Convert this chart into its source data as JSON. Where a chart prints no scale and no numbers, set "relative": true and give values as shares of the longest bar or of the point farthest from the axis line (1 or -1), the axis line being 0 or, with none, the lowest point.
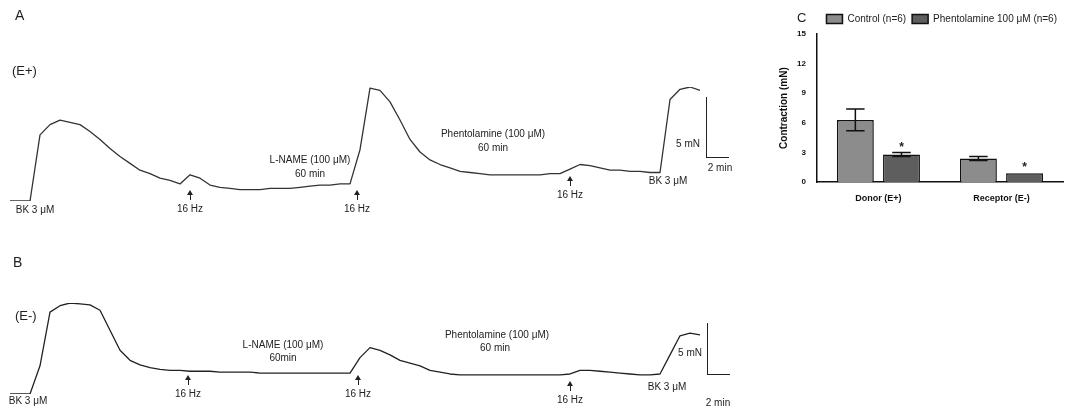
{
  "chart_data": [
    {
      "type": "line",
      "title": "A",
      "subtitle": "(E+)",
      "relative": true,
      "categories": [
        null,
        null,
        null,
        null,
        null,
        null,
        null,
        null,
        null,
        null,
        null,
        null,
        null,
        null,
        null,
        null,
        null,
        null,
        null,
        null,
        null,
        null,
        null,
        null,
        null,
        null,
        null,
        null,
        null,
        null,
        null,
        null,
        null,
        null,
        null,
        null,
        null,
        null,
        null,
        null,
        null,
        null,
        null,
        null,
        null,
        null,
        null,
        null,
        null,
        null,
        null,
        null,
        null,
        null,
        null,
        null,
        null,
        null,
        null,
        null,
        null,
        null,
        null,
        null,
        null,
        null,
        null,
        null,
        null,
        null
      ],
      "series": [
        {
          "color": "#333333",
          "values": [
            0,
            0,
            0,
            0.58,
            0.67,
            0.71,
            0.69,
            0.67,
            0.61,
            0.54,
            0.46,
            0.39,
            0.33,
            0.27,
            0.24,
            0.2,
            0.18,
            0.15,
            0.23,
            0.2,
            0.14,
            0.12,
            0.11,
            0.1,
            0.1,
            0.1,
            0.11,
            0.11,
            0.11,
            0.12,
            0.13,
            0.14,
            0.14,
            0.15,
            0.15,
            0.45,
            0.99,
            0.97,
            0.87,
            0.71,
            0.54,
            0.43,
            0.36,
            0.32,
            0.29,
            0.26,
            0.25,
            0.24,
            0.23,
            0.23,
            0.23,
            0.23,
            0.23,
            0.23,
            0.24,
            0.24,
            0.28,
            0.32,
            0.31,
            0.29,
            0.27,
            0.27,
            0.26,
            0.26,
            0.25,
            0.25,
            0.89,
            0.98,
            1,
            0.97
          ]
        }
      ],
      "annotations": [
        "BK 3 μM",
        "16 Hz",
        "L-NAME (100 μM)",
        "60 min",
        "16 Hz",
        "Phentolamine (100 μM)",
        "60 min",
        "16 Hz",
        "BK 3 μM",
        "5 mN",
        "2 min"
      ]
    },
    {
      "type": "line",
      "title": "B",
      "subtitle": "(E-)",
      "relative": true,
      "categories": [
        null,
        null,
        null,
        null,
        null,
        null,
        null,
        null,
        null,
        null,
        null,
        null,
        null,
        null,
        null,
        null,
        null,
        null,
        null,
        null,
        null,
        null,
        null,
        null,
        null,
        null,
        null,
        null,
        null,
        null,
        null,
        null,
        null,
        null,
        null,
        null,
        null,
        null,
        null,
        null,
        null,
        null,
        null,
        null,
        null,
        null,
        null,
        null,
        null,
        null,
        null,
        null,
        null,
        null,
        null,
        null,
        null,
        null,
        null,
        null,
        null,
        null,
        null,
        null,
        null,
        null,
        null,
        null,
        null,
        null
      ],
      "series": [
        {
          "color": "#222222",
          "values": [
            0,
            0,
            0,
            0.31,
            0.9,
            0.97,
            1,
            0.99,
            0.98,
            0.92,
            0.7,
            0.48,
            0.37,
            0.32,
            0.29,
            0.27,
            0.26,
            0.26,
            0.25,
            0.25,
            0.25,
            0.24,
            0.24,
            0.24,
            0.24,
            0.23,
            0.23,
            0.23,
            0.23,
            0.23,
            0.23,
            0.23,
            0.23,
            0.23,
            0.23,
            0.4,
            0.51,
            0.48,
            0.43,
            0.37,
            0.34,
            0.31,
            0.26,
            0.24,
            0.22,
            0.21,
            0.21,
            0.21,
            0.21,
            0.21,
            0.21,
            0.21,
            0.21,
            0.21,
            0.21,
            0.21,
            0.22,
            0.26,
            0.26,
            0.25,
            0.24,
            0.23,
            0.22,
            0.21,
            0.21,
            0.22,
            0.43,
            0.64,
            0.67,
            0.65
          ]
        }
      ],
      "annotations": [
        "BK 3 μM",
        "16 Hz",
        "L-NAME (100 μM)",
        "60min",
        "16 Hz",
        "Phentolamine (100 μM)",
        "60 min",
        "16 Hz",
        "BK 3 μM",
        "5 mN",
        "2 min"
      ]
    },
    {
      "type": "bar",
      "title": "C",
      "ylabel": "Contraction (mN)",
      "categories": [
        "Donor (E+)",
        "Receptor (E-)"
      ],
      "series": [
        {
          "name": "Control (n=6)",
          "color": "#8c8c8c",
          "values": [
            6.3,
            2.4
          ],
          "errors": [
            1.1,
            0.2
          ]
        },
        {
          "name": "Phentolamine 100 μM (n=6)",
          "color": "#5e5e5e",
          "values": [
            2.8,
            0.9
          ],
          "errors": [
            0.2,
            null
          ]
        }
      ],
      "ylim": [
        0,
        15
      ],
      "yticks": [
        0,
        3,
        6,
        9,
        12,
        15
      ],
      "legend": "top right",
      "annotations": [
        "*",
        "*"
      ]
    }
  ]
}
